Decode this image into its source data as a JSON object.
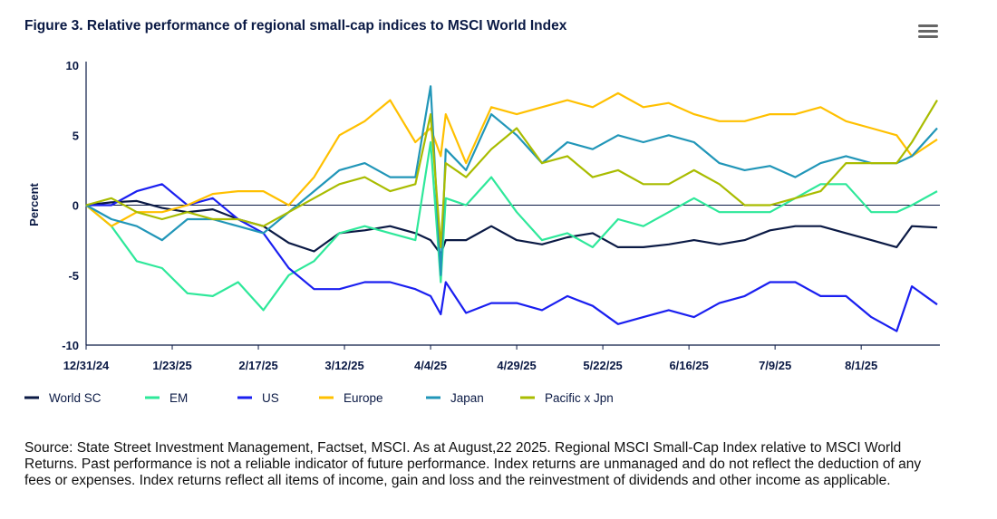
{
  "title": "Figure 3. Relative performance of regional small-cap indices to MSCI World Index",
  "menu_icon": "hamburger-menu-icon",
  "source": "Source: State Street Investment Management, Factset, MSCI. As at August,22 2025. Regional MSCI Small-Cap Index relative to MSCI World Returns. Past performance is not a reliable indicator of future performance. Index returns are unmanaged and do not reflect the deduction of any fees or expenses. Index returns reflect all items of income, gain and loss and the reinvestment of dividends and other income as applicable.",
  "chart_data": {
    "type": "line",
    "ylabel": "Percent",
    "xlabel": "",
    "ylim": [
      -10,
      10
    ],
    "yticks": [
      "10",
      "5",
      "0",
      "-5",
      "-10"
    ],
    "ytick_values": [
      10,
      5,
      0,
      -5,
      -10
    ],
    "xticks": [
      "12/31/24",
      "1/23/25",
      "2/17/25",
      "3/12/25",
      "4/4/25",
      "4/29/25",
      "5/22/25",
      "6/16/25",
      "7/9/25",
      "8/1/25"
    ],
    "grid": false,
    "zero_line": true,
    "legend_position": "bottom",
    "x": [
      "2024-12-31",
      "2025-01-07",
      "2025-01-14",
      "2025-01-21",
      "2025-01-28",
      "2025-02-04",
      "2025-02-11",
      "2025-02-18",
      "2025-02-25",
      "2025-03-04",
      "2025-03-11",
      "2025-03-18",
      "2025-03-25",
      "2025-04-01",
      "2025-04-04",
      "2025-04-08",
      "2025-04-09",
      "2025-04-15",
      "2025-04-22",
      "2025-04-29",
      "2025-05-06",
      "2025-05-13",
      "2025-05-20",
      "2025-05-27",
      "2025-06-03",
      "2025-06-10",
      "2025-06-17",
      "2025-06-24",
      "2025-07-01",
      "2025-07-08",
      "2025-07-15",
      "2025-07-22",
      "2025-07-29",
      "2025-08-05",
      "2025-08-12",
      "2025-08-15",
      "2025-08-22"
    ],
    "series": [
      {
        "name": "World SC",
        "color": "#0b1a45",
        "values": [
          0,
          0.2,
          0.3,
          -0.2,
          -0.5,
          -0.3,
          -1,
          -1.5,
          -2.7,
          -3.3,
          -2,
          -1.8,
          -1.5,
          -2,
          -2.5,
          -3.5,
          -2.5,
          -2.5,
          -1.5,
          -2.5,
          -2.8,
          -2.3,
          -2,
          -3,
          -3,
          -2.8,
          -2.5,
          -2.8,
          -2.5,
          -1.8,
          -1.5,
          -1.5,
          -2,
          -2.5,
          -3,
          -1.5,
          -1.6
        ]
      },
      {
        "name": "EM",
        "color": "#2ee89a",
        "values": [
          0,
          -1.5,
          -4,
          -4.5,
          -6.3,
          -6.5,
          -5.5,
          -7.5,
          -5,
          -4,
          -2,
          -1.5,
          -2,
          -2.5,
          4.5,
          -5.5,
          0.5,
          0,
          2,
          -0.5,
          -2.5,
          -2,
          -3,
          -1,
          -1.5,
          -0.5,
          0.5,
          -0.5,
          -0.5,
          -0.5,
          0.5,
          1.5,
          1.5,
          -0.5,
          -0.5,
          0,
          1
        ]
      },
      {
        "name": "US",
        "color": "#1a1ff0",
        "values": [
          0,
          0,
          1,
          1.5,
          0,
          0.5,
          -1,
          -2,
          -4.5,
          -6,
          -6,
          -5.5,
          -5.5,
          -6,
          -6.5,
          -7.8,
          -5.5,
          -7.7,
          -7,
          -7,
          -7.5,
          -6.5,
          -7.2,
          -8.5,
          -8,
          -7.5,
          -8,
          -7,
          -6.5,
          -5.5,
          -5.5,
          -6.5,
          -6.5,
          -8,
          -9,
          -5.8,
          -7.1
        ]
      },
      {
        "name": "Europe",
        "color": "#ffc000",
        "values": [
          0,
          -1.5,
          -0.5,
          -0.5,
          0,
          0.8,
          1,
          1,
          0,
          2,
          5,
          6,
          7.5,
          4.5,
          5.5,
          3.5,
          6.5,
          3,
          7,
          6.5,
          7,
          7.5,
          7,
          8,
          7,
          7.3,
          6.5,
          6,
          6,
          6.5,
          6.5,
          7,
          6,
          5.5,
          5,
          3.5,
          4.7
        ]
      },
      {
        "name": "Japan",
        "color": "#2196b8",
        "values": [
          0,
          -1,
          -1.5,
          -2.5,
          -1,
          -1,
          -1.5,
          -2,
          -0.5,
          1,
          2.5,
          3,
          2,
          2,
          8.5,
          -5,
          4,
          2.5,
          6.5,
          5,
          3,
          4.5,
          4,
          5,
          4.5,
          5,
          4.5,
          3,
          2.5,
          2.8,
          2,
          3,
          3.5,
          3,
          3,
          3.5,
          5.5
        ]
      },
      {
        "name": "Pacific x Jpn",
        "color": "#a9bc00",
        "values": [
          0,
          0.5,
          -0.5,
          -1,
          -0.5,
          -1,
          -1,
          -1.5,
          -0.5,
          0.5,
          1.5,
          2,
          1,
          1.5,
          6.5,
          -3,
          3,
          2,
          4,
          5.5,
          3,
          3.5,
          2,
          2.5,
          1.5,
          1.5,
          2.5,
          1.5,
          0,
          0,
          0.5,
          1,
          3,
          3,
          3,
          4.5,
          7.5
        ]
      }
    ]
  }
}
